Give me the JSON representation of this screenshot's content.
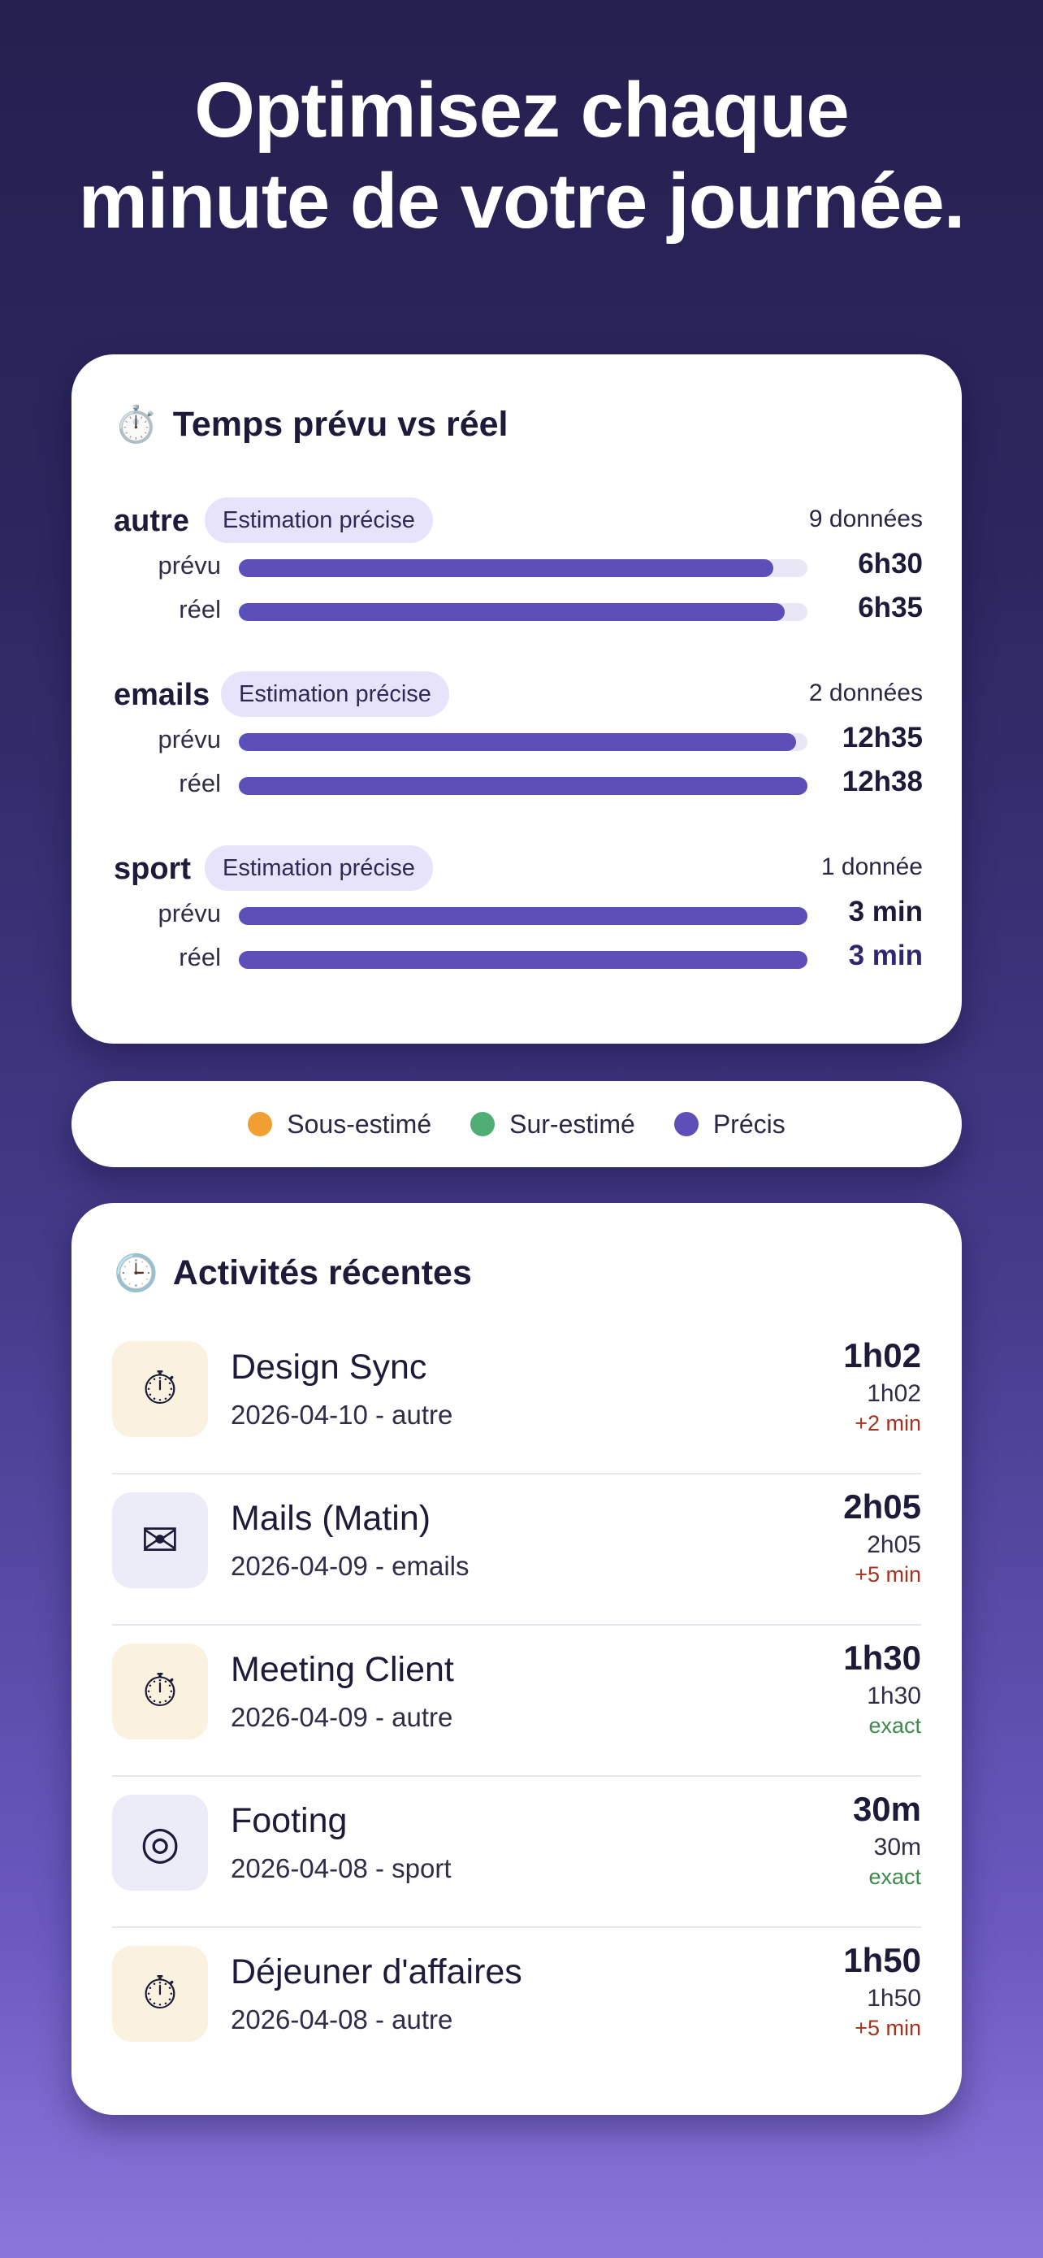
{
  "headline": {
    "line1": "Optimisez chaque",
    "line2": "minute de votre journée."
  },
  "comparison": {
    "icon": "stopwatch-icon",
    "icon_glyph": "⏱️",
    "title": "Temps prévu vs réel",
    "planned_label": "prévu",
    "actual_label": "réel",
    "categories": [
      {
        "name": "autre",
        "chip": "Estimation précise",
        "count": "9 données",
        "planned": "6h30",
        "actual": "6h35",
        "planned_fill": 0.94,
        "actual_fill": 0.96
      },
      {
        "name": "emails",
        "chip": "Estimation précise",
        "count": "2 données",
        "planned": "12h35",
        "actual": "12h38",
        "planned_fill": 0.98,
        "actual_fill": 1.0
      },
      {
        "name": "sport",
        "chip": "Estimation précise",
        "count": "1 donnée",
        "planned": "3 min",
        "actual": "3 min",
        "planned_fill": 1.0,
        "actual_fill": 1.0
      }
    ]
  },
  "legend": [
    {
      "label": "Sous-estimé",
      "color": "#f0a033"
    },
    {
      "label": "Sur-estimé",
      "color": "#4fae74"
    },
    {
      "label": "Précis",
      "color": "#5d4fb8"
    }
  ],
  "recent": {
    "icon": "clock-icon",
    "icon_glyph": "🕒",
    "title": "Activités récentes",
    "items": [
      {
        "name": "Design Sync",
        "meta": "2026-04-10 - autre",
        "time": "1h02",
        "sub": "1h02",
        "delta": "+2 min",
        "delta_color": "#a5321f",
        "icon": "stopwatch-icon",
        "glyph": "⏱",
        "icon_bg": "#fbf1df"
      },
      {
        "name": "Mails (Matin)",
        "meta": "2026-04-09 - emails",
        "time": "2h05",
        "sub": "2h05",
        "delta": "+5 min",
        "delta_color": "#a5321f",
        "icon": "envelope-icon",
        "glyph": "✉",
        "icon_bg": "#ecebf8"
      },
      {
        "name": "Meeting Client",
        "meta": "2026-04-09 - autre",
        "time": "1h30",
        "sub": "1h30",
        "delta": "exact",
        "delta_color": "#3d8a4c",
        "icon": "stopwatch-icon",
        "glyph": "⏱",
        "icon_bg": "#fbf1df"
      },
      {
        "name": "Footing",
        "meta": "2026-04-08 - sport",
        "time": "30m",
        "sub": "30m",
        "delta": "exact",
        "delta_color": "#3d8a4c",
        "icon": "target-icon",
        "glyph": "◎",
        "icon_bg": "#ecebf8"
      },
      {
        "name": "Déjeuner d'affaires",
        "meta": "2026-04-08 - autre",
        "time": "1h50",
        "sub": "1h50",
        "delta": "+5 min",
        "delta_color": "#a5321f",
        "icon": "stopwatch-icon",
        "glyph": "⏱",
        "icon_bg": "#fbf1df"
      }
    ]
  }
}
